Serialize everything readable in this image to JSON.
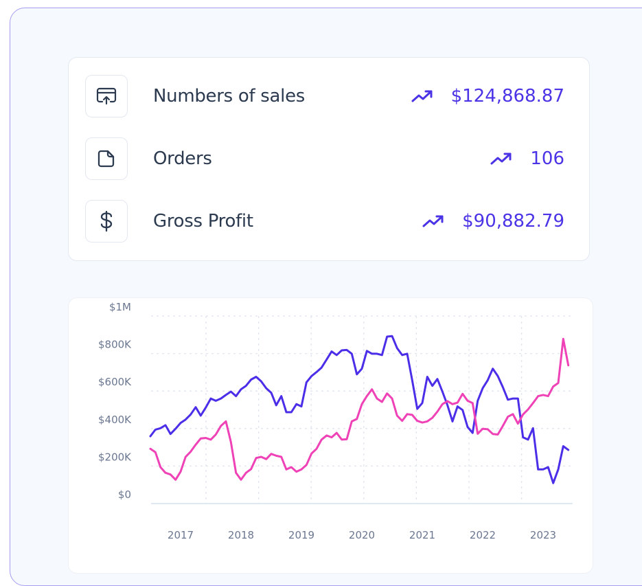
{
  "stats": [
    {
      "label": "Numbers of sales",
      "value": "$124,868.87",
      "icon": "card-upload-icon",
      "trend_icon": "trending-up-icon"
    },
    {
      "label": "Orders",
      "value": "106",
      "icon": "document-icon",
      "trend_icon": "trending-up-icon"
    },
    {
      "label": "Gross Profit",
      "value": "$90,882.79",
      "icon": "dollar-icon",
      "trend_icon": "trending-up-icon"
    }
  ],
  "colors": {
    "accent": "#4b33e6",
    "series_blue": "#4a2ee8",
    "series_pink": "#ee42b6",
    "text": "#2c3a4f"
  },
  "chart_data": {
    "type": "line",
    "title": "",
    "xlabel": "",
    "ylabel": "",
    "ylim": [
      0,
      1000000
    ],
    "y_ticks": [
      "$0",
      "$200K",
      "$400K",
      "$600K",
      "$800K",
      "$1M"
    ],
    "x_ticks": [
      "2017",
      "2018",
      "2019",
      "2020",
      "2021",
      "2022",
      "2023"
    ],
    "grid": true,
    "start_month": "2016-07",
    "end_month": "2023-06",
    "value_unit": "thousands USD, monthly",
    "series": [
      {
        "color": "#4a2ee8",
        "values": [
          359,
          394,
          402,
          418,
          371,
          399,
          430,
          448,
          475,
          514,
          469,
          512,
          560,
          548,
          560,
          579,
          597,
          573,
          609,
          628,
          661,
          676,
          652,
          615,
          591,
          524,
          573,
          487,
          487,
          530,
          518,
          646,
          680,
          701,
          725,
          768,
          811,
          792,
          817,
          819,
          799,
          689,
          719,
          814,
          799,
          799,
          792,
          890,
          893,
          829,
          792,
          799,
          658,
          505,
          536,
          676,
          628,
          664,
          597,
          524,
          438,
          518,
          499,
          408,
          377,
          548,
          615,
          658,
          719,
          680,
          621,
          554,
          560,
          560,
          353,
          341,
          402,
          182,
          182,
          194,
          109,
          182,
          306,
          286
        ]
      },
      {
        "color": "#ee42b6",
        "values": [
          292,
          274,
          194,
          164,
          155,
          127,
          170,
          249,
          277,
          314,
          347,
          350,
          341,
          368,
          414,
          438,
          328,
          164,
          127,
          164,
          184,
          243,
          249,
          237,
          265,
          255,
          249,
          182,
          194,
          170,
          182,
          206,
          267,
          292,
          341,
          363,
          353,
          377,
          341,
          343,
          438,
          451,
          530,
          573,
          609,
          560,
          542,
          587,
          560,
          469,
          441,
          477,
          473,
          441,
          432,
          438,
          457,
          490,
          530,
          546,
          530,
          538,
          585,
          548,
          536,
          372,
          399,
          396,
          371,
          368,
          414,
          463,
          477,
          426,
          475,
          502,
          536,
          573,
          579,
          573,
          624,
          643,
          878,
          737
        ]
      }
    ]
  }
}
